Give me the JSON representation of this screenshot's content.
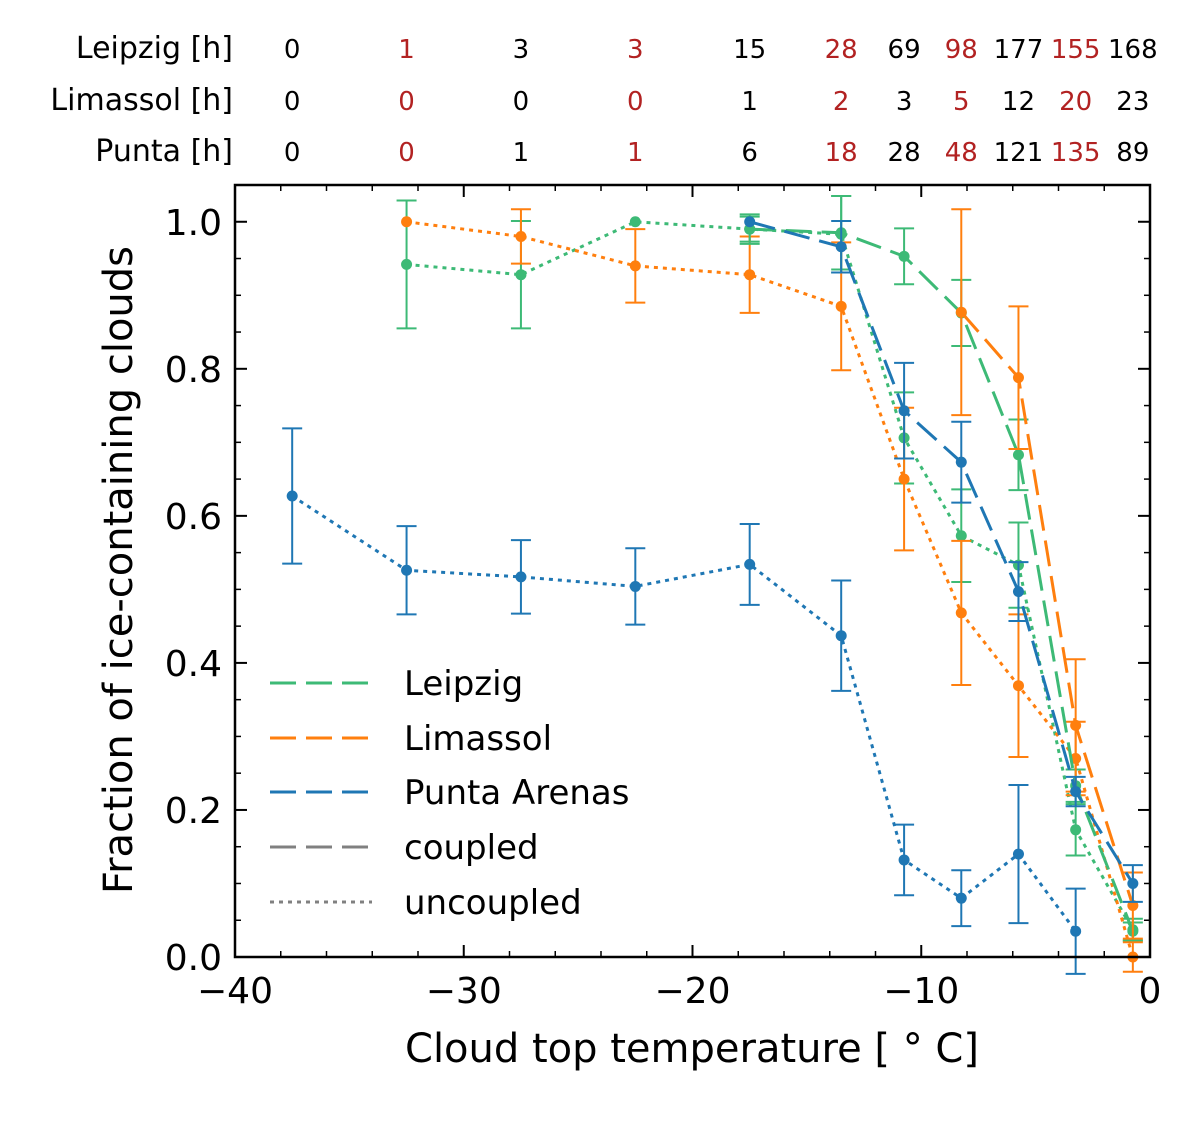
{
  "chart_data": {
    "type": "line",
    "xlabel": "Cloud top temperature [$^\\circ$C]",
    "xlabel_display": "Cloud top temperature [ ° C]",
    "ylabel": "Fraction of ice-containing clouds",
    "xlim": [
      -40,
      0
    ],
    "ylim": [
      0,
      1.05
    ],
    "xticks": [
      -40,
      -30,
      -20,
      -10,
      0
    ],
    "xtick_labels": [
      "−40",
      "−30",
      "−20",
      "−10",
      "0"
    ],
    "yticks": [
      0.0,
      0.2,
      0.4,
      0.6,
      0.8,
      1.0
    ],
    "ytick_labels": [
      "0.0",
      "0.2",
      "0.4",
      "0.6",
      "0.8",
      "1.0"
    ],
    "grid": false,
    "legend_position": "lower-left",
    "legend": [
      {
        "label": "Leipzig",
        "color": "#3dba76",
        "style": "long-dash"
      },
      {
        "label": "Limassol",
        "color": "#ff7f0e",
        "style": "long-dash"
      },
      {
        "label": "Punta Arenas",
        "color": "#1f77b4",
        "style": "long-dash"
      },
      {
        "label": "coupled",
        "color": "#808080",
        "style": "long-dash"
      },
      {
        "label": "uncoupled",
        "color": "#808080",
        "style": "dotted"
      }
    ],
    "hours_table": {
      "bin_centers": [
        -37.5,
        -32.5,
        -27.5,
        -22.5,
        -17.5,
        -13.5,
        -10.75,
        -8.25,
        -5.75,
        -3.25,
        -0.75
      ],
      "odd_color": "#b22222",
      "rows": [
        {
          "label": "Leipzig [h]",
          "values": [
            "0",
            "1",
            "3",
            "3",
            "15",
            "28",
            "69",
            "98",
            "177",
            "155",
            "168"
          ]
        },
        {
          "label": "Limassol [h]",
          "values": [
            "0",
            "0",
            "0",
            "0",
            "1",
            "2",
            "3",
            "5",
            "12",
            "20",
            "23"
          ]
        },
        {
          "label": "Punta [h]",
          "values": [
            "0",
            "0",
            "1",
            "1",
            "6",
            "18",
            "28",
            "48",
            "121",
            "135",
            "89"
          ]
        }
      ]
    },
    "series": [
      {
        "name": "Leipzig",
        "mode": "coupled",
        "color": "#3dba76",
        "style": "dashed",
        "x": [
          -17.5,
          -13.5,
          -10.75,
          -8.25,
          -5.75,
          -3.25,
          -0.75
        ],
        "y": [
          0.99,
          0.985,
          0.953,
          0.876,
          0.683,
          0.233,
          0.035
        ],
        "err": [
          0.02,
          0.05,
          0.038,
          0.045,
          0.048,
          0.022,
          0.012
        ]
      },
      {
        "name": "Limassol",
        "mode": "coupled",
        "color": "#ff7f0e",
        "style": "dashed",
        "x": [
          -8.25,
          -5.75,
          -3.25,
          -0.75
        ],
        "y": [
          0.877,
          0.788,
          0.315,
          0.07
        ],
        "err": [
          0.14,
          0.097,
          0.09,
          0.045
        ]
      },
      {
        "name": "Punta Arenas",
        "mode": "coupled",
        "color": "#1f77b4",
        "style": "dashed",
        "x": [
          -17.5,
          -13.5,
          -10.75,
          -8.25,
          -5.75,
          -3.25,
          -0.75
        ],
        "y": [
          1.0,
          0.966,
          0.743,
          0.673,
          0.497,
          0.225,
          0.1
        ],
        "err": [
          0.0,
          0.035,
          0.065,
          0.055,
          0.04,
          0.02,
          0.025
        ]
      },
      {
        "name": "Leipzig",
        "mode": "uncoupled",
        "color": "#3dba76",
        "style": "dotted",
        "x": [
          -32.5,
          -27.5,
          -22.5,
          -17.5,
          -13.5,
          -10.75,
          -8.25,
          -5.75,
          -3.25,
          -0.75
        ],
        "y": [
          0.942,
          0.928,
          1.0,
          0.99,
          0.983,
          0.706,
          0.573,
          0.533,
          0.173,
          0.037
        ],
        "err": [
          0.087,
          0.073,
          0.0,
          0.017,
          0.052,
          0.062,
          0.063,
          0.058,
          0.035,
          0.015
        ]
      },
      {
        "name": "Limassol",
        "mode": "uncoupled",
        "color": "#ff7f0e",
        "style": "dotted",
        "x": [
          -32.5,
          -27.5,
          -22.5,
          -17.5,
          -13.5,
          -10.75,
          -8.25,
          -5.75,
          -3.25,
          -0.75
        ],
        "y": [
          1.0,
          0.98,
          0.94,
          0.928,
          0.885,
          0.65,
          0.468,
          0.369,
          0.27,
          0.0
        ],
        "err": [
          0.0,
          0.037,
          0.05,
          0.052,
          0.087,
          0.097,
          0.098,
          0.097,
          0.05,
          0.02
        ]
      },
      {
        "name": "Punta Arenas",
        "mode": "uncoupled",
        "color": "#1f77b4",
        "style": "dotted",
        "x": [
          -37.5,
          -32.5,
          -27.5,
          -22.5,
          -17.5,
          -13.5,
          -10.75,
          -8.25,
          -5.75,
          -3.25
        ],
        "y": [
          0.627,
          0.526,
          0.517,
          0.504,
          0.534,
          0.437,
          0.132,
          0.08,
          0.14,
          0.035
        ],
        "err": [
          0.092,
          0.06,
          0.05,
          0.052,
          0.055,
          0.075,
          0.048,
          0.038,
          0.094,
          0.058
        ]
      }
    ]
  }
}
